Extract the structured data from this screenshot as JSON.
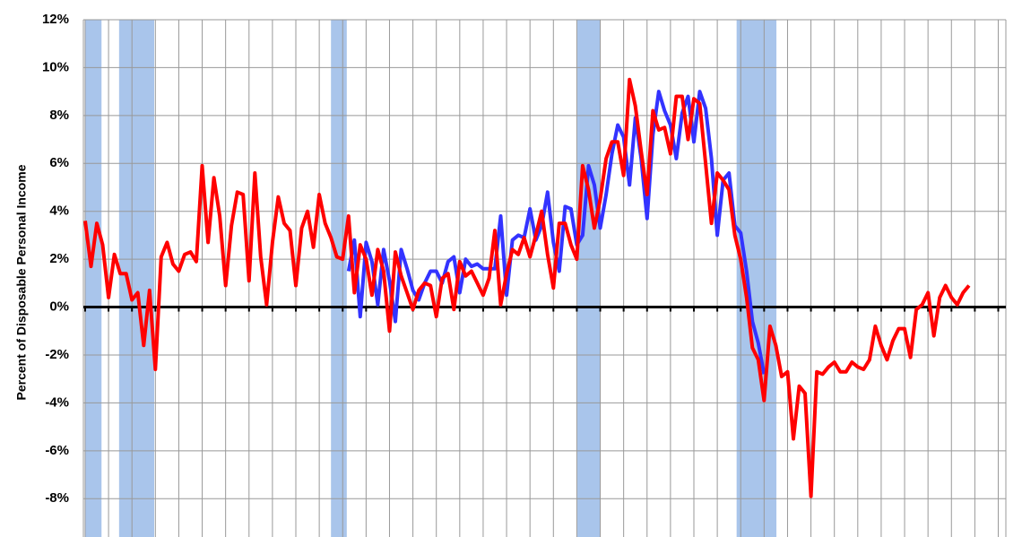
{
  "chart_data": {
    "type": "line",
    "y_axis_label": "Percent of Disposable Personal Income",
    "xlim": [
      -0.3,
      157.3
    ],
    "xticks": [
      0,
      4,
      8,
      12,
      16,
      20,
      24,
      28,
      32,
      36,
      40,
      44,
      48,
      52,
      56,
      60,
      64,
      68,
      72,
      76,
      80,
      84,
      88,
      92,
      96,
      100,
      104,
      108,
      112,
      116,
      120,
      124,
      128,
      132,
      136,
      140,
      144,
      148,
      152,
      156
    ],
    "ylim": [
      -9.6,
      12
    ],
    "yticks": [
      {
        "value": -8,
        "label": "-8%"
      },
      {
        "value": -6,
        "label": "-6%"
      },
      {
        "value": -4,
        "label": "-4%"
      },
      {
        "value": -2,
        "label": "-2%"
      },
      {
        "value": 0,
        "label": "0%"
      },
      {
        "value": 2,
        "label": "2%"
      },
      {
        "value": 4,
        "label": "4%"
      },
      {
        "value": 6,
        "label": "6%"
      },
      {
        "value": 8,
        "label": "8%"
      },
      {
        "value": 10,
        "label": "10%"
      },
      {
        "value": 12,
        "label": "12%"
      }
    ],
    "grid": true,
    "band_color": "#a9c5eb",
    "recessions": [
      {
        "start": 0,
        "end": 2.8
      },
      {
        "start": 5.8,
        "end": 11.8
      },
      {
        "start": 42,
        "end": 44.7
      },
      {
        "start": 84.1,
        "end": 88
      },
      {
        "start": 111.3,
        "end": 118.1
      }
    ],
    "series": [
      {
        "color": "#ff0000",
        "values": [
          3.6,
          1.7,
          3.5,
          2.6,
          0.4,
          2.2,
          1.4,
          1.4,
          0.3,
          0.6,
          -1.6,
          0.7,
          -2.6,
          2.1,
          2.7,
          1.8,
          1.5,
          2.2,
          2.3,
          1.9,
          5.9,
          2.7,
          5.4,
          3.8,
          0.9,
          3.4,
          4.8,
          4.7,
          1.1,
          5.6,
          2.1,
          0.1,
          2.7,
          4.6,
          3.5,
          3.2,
          0.9,
          3.3,
          4.0,
          2.5,
          4.7,
          3.5,
          2.9,
          2.1,
          2.0,
          3.8,
          0.6,
          2.6,
          2.0,
          0.5,
          2.4,
          1.5,
          -1.0,
          2.3,
          1.3,
          0.6,
          -0.1,
          0.7,
          1.0,
          0.9,
          -0.4,
          1.2,
          1.4,
          -0.1,
          1.9,
          1.3,
          1.5,
          1.0,
          0.5,
          1.2,
          3.2,
          0.1,
          1.4,
          2.4,
          2.2,
          2.9,
          2.1,
          3.0,
          4.0,
          2.2,
          0.8,
          3.5,
          3.5,
          2.6,
          2.0,
          5.9,
          4.9,
          3.3,
          4.5,
          6.2,
          6.9,
          6.9,
          5.5,
          9.5,
          8.4,
          6.5,
          4.7,
          8.2,
          7.4,
          7.5,
          6.4,
          8.8,
          8.8,
          7.0,
          8.7,
          8.5,
          6.0,
          3.5,
          5.6,
          5.3,
          4.9,
          3.0,
          2.0,
          0.4,
          -1.7,
          -2.2,
          -3.9,
          -0.8,
          -1.6,
          -2.9,
          -2.7,
          -5.5,
          -3.3,
          -3.6,
          -7.9,
          -2.7,
          -2.8,
          -2.5,
          -2.3,
          -2.7,
          -2.7,
          -2.3,
          -2.5,
          -2.6,
          -2.2,
          -0.8,
          -1.6,
          -2.2,
          -1.4,
          -0.9,
          -0.9,
          -2.1,
          -0.1,
          0.1,
          0.6,
          -1.2,
          0.4,
          0.9,
          0.4,
          0.1,
          0.6,
          0.9
        ]
      },
      {
        "color": "#3333ff",
        "values": [
          null,
          null,
          null,
          null,
          null,
          null,
          null,
          null,
          null,
          null,
          null,
          null,
          null,
          null,
          null,
          null,
          null,
          null,
          null,
          null,
          null,
          null,
          null,
          null,
          null,
          null,
          null,
          null,
          null,
          null,
          null,
          null,
          null,
          null,
          null,
          null,
          null,
          null,
          null,
          null,
          null,
          null,
          null,
          null,
          null,
          1.5,
          2.8,
          -0.4,
          2.7,
          1.9,
          0.1,
          2.4,
          1.1,
          -0.6,
          2.4,
          1.6,
          0.7,
          0.3,
          1.0,
          1.5,
          1.5,
          1.0,
          1.9,
          2.1,
          0.6,
          2.0,
          1.7,
          1.8,
          1.6,
          1.6,
          1.6,
          3.8,
          0.5,
          2.8,
          3.0,
          2.9,
          4.1,
          2.8,
          3.4,
          4.8,
          2.7,
          1.5,
          4.2,
          4.1,
          2.6,
          3.0,
          5.9,
          5.1,
          3.3,
          4.7,
          6.4,
          7.6,
          7.1,
          5.1,
          7.9,
          6.2,
          3.7,
          7.2,
          9.0,
          8.2,
          7.6,
          6.2,
          8.1,
          8.8,
          6.9,
          9.0,
          8.3,
          6.2,
          3.0,
          5.3,
          5.6,
          3.4,
          3.1,
          1.5,
          -0.6,
          -1.5,
          -2.8,
          null,
          null,
          null,
          null,
          null,
          null,
          null,
          null,
          null,
          null,
          null,
          null,
          null,
          null,
          null,
          null,
          null,
          null,
          null,
          null,
          null,
          null,
          null,
          null,
          null,
          null,
          null,
          null,
          null,
          null,
          null,
          null,
          null,
          null,
          null
        ]
      }
    ]
  }
}
